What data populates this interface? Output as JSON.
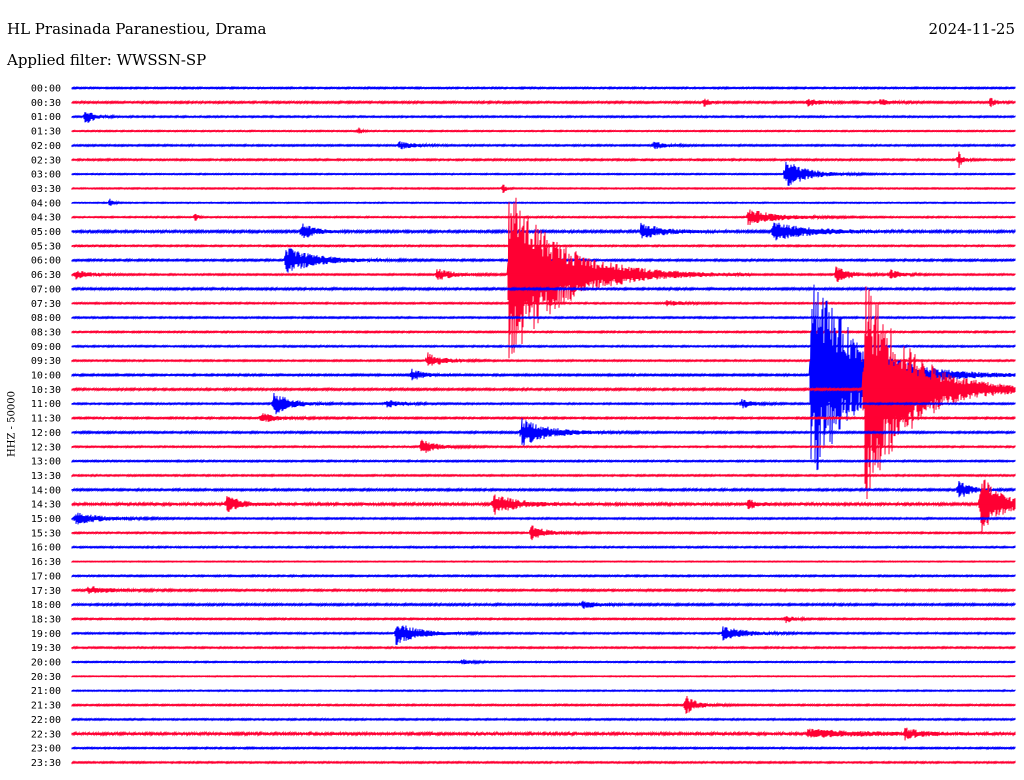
{
  "header": {
    "station": "HL Prasinada Paranestiou, Drama",
    "date": "2024-11-25",
    "filter": "Applied filter: WWSSN-SP"
  },
  "chart_data": {
    "type": "line",
    "subtype": "helicorder",
    "ylabel": "HHZ - 50000",
    "xlabel": "",
    "grid": false,
    "colors": {
      "even_rows": "#0000ff",
      "odd_rows": "#ff0033"
    },
    "rows": [
      "00:00",
      "00:30",
      "01:00",
      "01:30",
      "02:00",
      "02:30",
      "03:00",
      "03:30",
      "04:00",
      "04:30",
      "05:00",
      "05:30",
      "06:00",
      "06:30",
      "07:00",
      "07:30",
      "08:00",
      "08:30",
      "09:00",
      "09:30",
      "10:00",
      "10:30",
      "11:00",
      "11:30",
      "12:00",
      "12:30",
      "13:00",
      "13:30",
      "14:00",
      "14:30",
      "15:00",
      "15:30",
      "16:00",
      "16:30",
      "17:00",
      "17:30",
      "18:00",
      "18:30",
      "19:00",
      "19:30",
      "20:00",
      "20:30",
      "21:00",
      "21:30",
      "22:00",
      "22:30",
      "23:00",
      "23:30"
    ],
    "x_range_minutes": [
      0,
      30
    ],
    "background_noise_amplitude": [
      1.0,
      1.2,
      1.0,
      0.8,
      1.0,
      1.1,
      0.8,
      0.8,
      0.7,
      0.9,
      1.6,
      1.0,
      1.2,
      1.0,
      1.3,
      1.0,
      1.0,
      1.0,
      1.0,
      1.0,
      1.2,
      1.3,
      1.0,
      1.1,
      1.2,
      1.0,
      1.0,
      1.0,
      1.3,
      1.8,
      1.0,
      1.0,
      1.0,
      0.6,
      1.0,
      1.2,
      1.3,
      1.0,
      1.0,
      1.0,
      0.8,
      0.6,
      0.8,
      1.0,
      1.0,
      1.8,
      1.0,
      1.0
    ],
    "events": [
      {
        "row": 1,
        "minute": 20.1,
        "amplitude": 5,
        "duration": 0.4
      },
      {
        "row": 1,
        "minute": 23.4,
        "amplitude": 4,
        "duration": 0.8
      },
      {
        "row": 1,
        "minute": 25.7,
        "amplitude": 3,
        "duration": 0.8
      },
      {
        "row": 1,
        "minute": 29.2,
        "amplitude": 5,
        "duration": 0.4
      },
      {
        "row": 2,
        "minute": 0.4,
        "amplitude": 9,
        "duration": 0.6
      },
      {
        "row": 3,
        "minute": 9.1,
        "amplitude": 5,
        "duration": 0.2
      },
      {
        "row": 4,
        "minute": 10.4,
        "amplitude": 4,
        "duration": 1.0
      },
      {
        "row": 4,
        "minute": 18.5,
        "amplitude": 4,
        "duration": 0.8
      },
      {
        "row": 5,
        "minute": 28.2,
        "amplitude": 9,
        "duration": 0.3
      },
      {
        "row": 6,
        "minute": 22.7,
        "amplitude": 14,
        "duration": 1.5
      },
      {
        "row": 7,
        "minute": 13.7,
        "amplitude": 6,
        "duration": 0.2
      },
      {
        "row": 8,
        "minute": 1.2,
        "amplitude": 6,
        "duration": 0.2
      },
      {
        "row": 9,
        "minute": 3.9,
        "amplitude": 5,
        "duration": 0.2
      },
      {
        "row": 9,
        "minute": 21.5,
        "amplitude": 8,
        "duration": 2.0
      },
      {
        "row": 10,
        "minute": 7.3,
        "amplitude": 9,
        "duration": 0.8
      },
      {
        "row": 10,
        "minute": 18.1,
        "amplitude": 8,
        "duration": 1.5
      },
      {
        "row": 10,
        "minute": 22.3,
        "amplitude": 9,
        "duration": 2.5
      },
      {
        "row": 12,
        "minute": 6.8,
        "amplitude": 14,
        "duration": 2.0
      },
      {
        "row": 13,
        "minute": 0.1,
        "amplitude": 5,
        "duration": 1.0
      },
      {
        "row": 13,
        "minute": 11.6,
        "amplitude": 6,
        "duration": 1.2
      },
      {
        "row": 13,
        "minute": 13.9,
        "amplitude": 90,
        "duration": 3.5
      },
      {
        "row": 13,
        "minute": 24.3,
        "amplitude": 8,
        "duration": 1.0
      },
      {
        "row": 13,
        "minute": 26.0,
        "amplitude": 5,
        "duration": 0.8
      },
      {
        "row": 15,
        "minute": 18.9,
        "amplitude": 3,
        "duration": 1.0
      },
      {
        "row": 19,
        "minute": 11.3,
        "amplitude": 8,
        "duration": 1.0
      },
      {
        "row": 20,
        "minute": 10.8,
        "amplitude": 6,
        "duration": 0.8
      },
      {
        "row": 20,
        "minute": 23.5,
        "amplitude": 115,
        "duration": 3.0
      },
      {
        "row": 21,
        "minute": 25.2,
        "amplitude": 120,
        "duration": 3.0
      },
      {
        "row": 22,
        "minute": 6.4,
        "amplitude": 12,
        "duration": 1.2
      },
      {
        "row": 22,
        "minute": 10.0,
        "amplitude": 4,
        "duration": 1.0
      },
      {
        "row": 22,
        "minute": 21.3,
        "amplitude": 5,
        "duration": 0.8
      },
      {
        "row": 23,
        "minute": 6.0,
        "amplitude": 5,
        "duration": 1.2
      },
      {
        "row": 24,
        "minute": 14.3,
        "amplitude": 14,
        "duration": 1.8
      },
      {
        "row": 25,
        "minute": 11.1,
        "amplitude": 8,
        "duration": 1.0
      },
      {
        "row": 28,
        "minute": 28.2,
        "amplitude": 10,
        "duration": 0.8
      },
      {
        "row": 29,
        "minute": 4.9,
        "amplitude": 9,
        "duration": 1.0
      },
      {
        "row": 29,
        "minute": 13.4,
        "amplitude": 11,
        "duration": 1.5
      },
      {
        "row": 29,
        "minute": 21.5,
        "amplitude": 5,
        "duration": 0.6
      },
      {
        "row": 29,
        "minute": 28.9,
        "amplitude": 30,
        "duration": 1.4
      },
      {
        "row": 30,
        "minute": 0.1,
        "amplitude": 6,
        "duration": 1.8
      },
      {
        "row": 31,
        "minute": 14.6,
        "amplitude": 8,
        "duration": 1.0
      },
      {
        "row": 35,
        "minute": 0.5,
        "amplitude": 4,
        "duration": 1.5
      },
      {
        "row": 36,
        "minute": 16.2,
        "amplitude": 4,
        "duration": 1.0
      },
      {
        "row": 37,
        "minute": 22.7,
        "amplitude": 4,
        "duration": 0.6
      },
      {
        "row": 38,
        "minute": 10.3,
        "amplitude": 12,
        "duration": 1.5
      },
      {
        "row": 38,
        "minute": 20.7,
        "amplitude": 7,
        "duration": 1.5
      },
      {
        "row": 40,
        "minute": 12.4,
        "amplitude": 3,
        "duration": 0.6
      },
      {
        "row": 43,
        "minute": 19.5,
        "amplitude": 10,
        "duration": 0.8
      },
      {
        "row": 45,
        "minute": 23.4,
        "amplitude": 4,
        "duration": 4.0
      },
      {
        "row": 45,
        "minute": 26.5,
        "amplitude": 5,
        "duration": 1.0
      }
    ]
  }
}
